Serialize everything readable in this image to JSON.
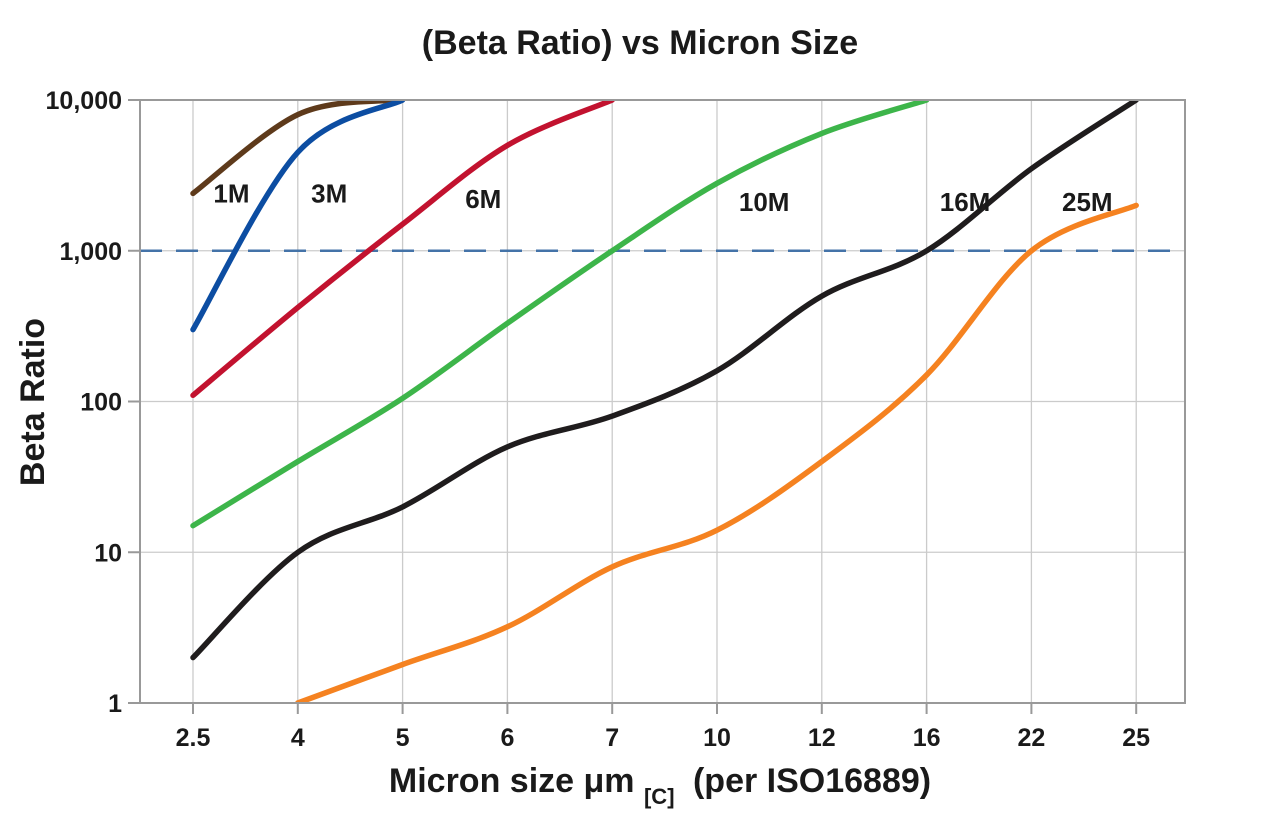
{
  "chart_data": {
    "type": "line",
    "title": "(Beta Ratio) vs Micron Size",
    "ylabel": "Beta Ratio",
    "xlabel": {
      "prefix": "Micron size μm",
      "subscript": "[C]",
      "suffix": "(per ISO16889)"
    },
    "x_scale": "categorical-even-spacing",
    "y_scale": "log",
    "ylim": [
      1,
      10000
    ],
    "grid": true,
    "x_categories": [
      2.5,
      4,
      5,
      6,
      7,
      10,
      12,
      16,
      22,
      25
    ],
    "x_tick_labels": [
      "2.5",
      "4",
      "5",
      "6",
      "7",
      "10",
      "12",
      "16",
      "22",
      "25"
    ],
    "y_ticks": [
      {
        "value": 1,
        "label": "1"
      },
      {
        "value": 10,
        "label": "10"
      },
      {
        "value": 100,
        "label": "100"
      },
      {
        "value": 1000,
        "label": "1,000"
      },
      {
        "value": 10000,
        "label": "10,000"
      }
    ],
    "reference_line": {
      "value": 1000,
      "style": "dashed",
      "color": "#4473A8"
    },
    "series": [
      {
        "name": "1M",
        "color": "#5E3A1B",
        "points": [
          [
            2.5,
            2400
          ],
          [
            4,
            8000
          ],
          [
            4.9,
            10000
          ]
        ],
        "label_anchor": {
          "x": 3.05,
          "y": 2400
        }
      },
      {
        "name": "3M",
        "color": "#0C4DA2",
        "points": [
          [
            2.5,
            300
          ],
          [
            4,
            4500
          ],
          [
            5,
            10000
          ]
        ],
        "label_anchor": {
          "x": 4.3,
          "y": 2400
        }
      },
      {
        "name": "6M",
        "color": "#C2122F",
        "points": [
          [
            2.5,
            110
          ],
          [
            4,
            420
          ],
          [
            5,
            1500
          ],
          [
            6,
            5000
          ],
          [
            7,
            10000
          ]
        ],
        "label_anchor": {
          "x": 5.77,
          "y": 2200
        }
      },
      {
        "name": "10M",
        "color": "#3DB54A",
        "points": [
          [
            2.5,
            15
          ],
          [
            4,
            40
          ],
          [
            5,
            105
          ],
          [
            6,
            330
          ],
          [
            7,
            1000
          ],
          [
            10,
            2800
          ],
          [
            12,
            6000
          ],
          [
            16,
            10000
          ]
        ],
        "label_anchor": {
          "x": 10.9,
          "y": 2100
        }
      },
      {
        "name": "16M",
        "color": "#1F1C1D",
        "points": [
          [
            2.5,
            2
          ],
          [
            4,
            10
          ],
          [
            5,
            20
          ],
          [
            6,
            50
          ],
          [
            7,
            80
          ],
          [
            10,
            160
          ],
          [
            12,
            500
          ],
          [
            16,
            1000
          ],
          [
            22,
            3500
          ],
          [
            25,
            10000
          ]
        ],
        "label_anchor": {
          "x": 18.2,
          "y": 2100
        }
      },
      {
        "name": "25M",
        "color": "#F58220",
        "points": [
          [
            4,
            1
          ],
          [
            5,
            1.8
          ],
          [
            6,
            3.2
          ],
          [
            7,
            8
          ],
          [
            10,
            14
          ],
          [
            12,
            40
          ],
          [
            16,
            150
          ],
          [
            22,
            1000
          ],
          [
            25,
            2000
          ]
        ],
        "label_anchor": {
          "x": 23.6,
          "y": 2100
        }
      }
    ],
    "colors": {
      "background": "#FFFFFF",
      "grid": "#CBCBCB",
      "border": "#999999",
      "text": "#1A1A1A"
    }
  }
}
